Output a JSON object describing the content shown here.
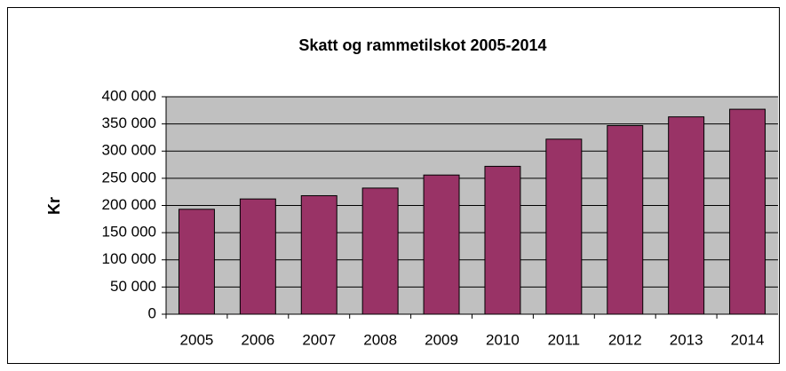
{
  "chart_data": {
    "type": "bar",
    "title": "Skatt og rammetilskot 2005-2014",
    "y_label": "Kr",
    "categories": [
      "2005",
      "2006",
      "2007",
      "2008",
      "2009",
      "2010",
      "2011",
      "2012",
      "2013",
      "2014"
    ],
    "values": [
      193000,
      212000,
      218000,
      232000,
      256000,
      272000,
      322000,
      347000,
      363000,
      377000
    ],
    "color": "#993366",
    "ylim": [
      0,
      400000
    ],
    "yticks": [
      0,
      {
        "value": 50000,
        "label": "50 000"
      },
      {
        "value": 100000,
        "label": "100 000"
      },
      {
        "value": 150000,
        "label": "150 000"
      },
      {
        "value": 200000,
        "label": "200 000"
      },
      {
        "value": 250000,
        "label": "250 000"
      },
      {
        "value": 300000,
        "label": "300 000"
      },
      {
        "value": 350000,
        "label": "350 000"
      },
      {
        "value": 400000,
        "label": "400 000"
      }
    ],
    "grid": true
  }
}
